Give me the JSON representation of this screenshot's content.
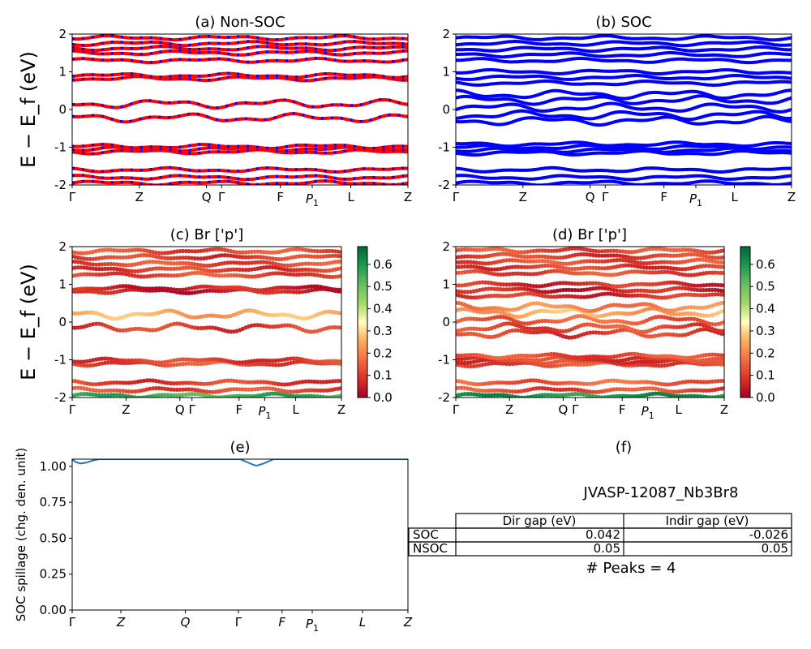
{
  "chart_data": [
    {
      "id": "a",
      "type": "line",
      "title": "(a) Non-SOC",
      "ylabel": "E − E_f (eV)",
      "ylim": [
        -2,
        2
      ],
      "yticks": [
        -2,
        -1,
        0,
        1,
        2
      ],
      "xticks": [
        {
          "label": "Γ",
          "pos": 0.0
        },
        {
          "label": "Z",
          "pos": 0.2
        },
        {
          "label": "Q",
          "pos": 0.4
        },
        {
          "label": "Γ",
          "pos": 0.445
        },
        {
          "label": "F",
          "pos": 0.62
        },
        {
          "label": "P1",
          "pos": 0.715
        },
        {
          "label": "L",
          "pos": 0.83
        },
        {
          "label": "Z",
          "pos": 1.0
        }
      ],
      "series": [
        {
          "color": "#ff0000",
          "bands": "non-soc"
        },
        {
          "color": "#0000ff",
          "bands": "non-soc"
        }
      ],
      "band_levels_eV": [
        -1.95,
        -1.8,
        -1.6,
        -1.12,
        -1.05,
        -0.98,
        -0.22,
        0.15,
        0.82,
        0.9,
        1.3,
        1.5,
        1.62,
        1.75,
        1.9
      ]
    },
    {
      "id": "b",
      "type": "line",
      "title": "(b) SOC",
      "ylim": [
        -2,
        2
      ],
      "yticks": [
        -2,
        -1,
        0,
        1,
        2
      ],
      "xticks": [
        {
          "label": "Γ",
          "pos": 0.0
        },
        {
          "label": "Z",
          "pos": 0.2
        },
        {
          "label": "Q",
          "pos": 0.4
        },
        {
          "label": "Γ",
          "pos": 0.445
        },
        {
          "label": "F",
          "pos": 0.62
        },
        {
          "label": "P1",
          "pos": 0.715
        },
        {
          "label": "L",
          "pos": 0.83
        },
        {
          "label": "Z",
          "pos": 1.0
        }
      ],
      "series": [
        {
          "color": "#0000ff",
          "bands": "soc"
        }
      ],
      "band_levels_eV": [
        -1.95,
        -1.8,
        -1.6,
        -1.15,
        -1.08,
        -1.0,
        -0.92,
        -0.3,
        -0.15,
        0.05,
        0.25,
        0.4,
        0.7,
        0.85,
        1.0,
        1.3,
        1.45,
        1.6,
        1.75,
        1.9
      ]
    },
    {
      "id": "c",
      "type": "scatter",
      "title": "(c)  Br ['p']",
      "ylabel": "E − E_f (eV)",
      "ylim": [
        -2,
        2
      ],
      "yticks": [
        -2,
        -1,
        0,
        1,
        2
      ],
      "xticks": [
        {
          "label": "Γ",
          "pos": 0.0
        },
        {
          "label": "Z",
          "pos": 0.2
        },
        {
          "label": "Q",
          "pos": 0.4
        },
        {
          "label": "Γ",
          "pos": 0.445
        },
        {
          "label": "F",
          "pos": 0.62
        },
        {
          "label": "P1",
          "pos": 0.715
        },
        {
          "label": "L",
          "pos": 0.83
        },
        {
          "label": "Z",
          "pos": 1.0
        }
      ],
      "colorbar": {
        "cmap": "RdYlGn",
        "range": [
          0,
          0.68
        ],
        "ticks": [
          "0.0",
          "0.1",
          "0.2",
          "0.3",
          "0.4",
          "0.5",
          "0.6"
        ]
      },
      "band_levels_eV": [
        -1.95,
        -1.8,
        -1.6,
        -1.1,
        -1.02,
        -0.15,
        0.2,
        0.82,
        0.9,
        1.25,
        1.4,
        1.55,
        1.72,
        1.88
      ],
      "band_weights": [
        0.55,
        0.12,
        0.1,
        0.12,
        0.1,
        0.1,
        0.25,
        0.05,
        0.06,
        0.12,
        0.1,
        0.12,
        0.1,
        0.12
      ]
    },
    {
      "id": "d",
      "type": "scatter",
      "title": "(d) Br ['p']",
      "ylim": [
        -2,
        2
      ],
      "yticks": [
        -2,
        -1,
        0,
        1,
        2
      ],
      "xticks": [
        {
          "label": "Γ",
          "pos": 0.0
        },
        {
          "label": "Z",
          "pos": 0.2
        },
        {
          "label": "Q",
          "pos": 0.4
        },
        {
          "label": "Γ",
          "pos": 0.445
        },
        {
          "label": "F",
          "pos": 0.62
        },
        {
          "label": "P1",
          "pos": 0.715
        },
        {
          "label": "L",
          "pos": 0.83
        },
        {
          "label": "Z",
          "pos": 1.0
        }
      ],
      "colorbar": {
        "cmap": "RdYlGn",
        "range": [
          0,
          0.68
        ],
        "ticks": [
          "0.0",
          "0.1",
          "0.2",
          "0.3",
          "0.4",
          "0.5",
          "0.6"
        ]
      },
      "band_levels_eV": [
        -1.95,
        -1.8,
        -1.6,
        -1.12,
        -1.05,
        -0.98,
        -0.9,
        -0.3,
        -0.15,
        0.05,
        0.25,
        0.4,
        0.7,
        0.85,
        1.0,
        1.3,
        1.45,
        1.6,
        1.75,
        1.9
      ],
      "band_weights": [
        0.6,
        0.12,
        0.15,
        0.12,
        0.1,
        0.1,
        0.12,
        0.1,
        0.12,
        0.15,
        0.25,
        0.2,
        0.08,
        0.06,
        0.08,
        0.12,
        0.1,
        0.12,
        0.1,
        0.12
      ]
    },
    {
      "id": "e",
      "type": "line",
      "title": "(e)",
      "ylabel": "SOC spillage (chg. den. unit)",
      "ylim": [
        0,
        1.05
      ],
      "yticks": [
        "0.00",
        "0.25",
        "0.50",
        "0.75",
        "1.00"
      ],
      "xticks": [
        {
          "label": "Γ",
          "pos": 0.0
        },
        {
          "label": "Z",
          "pos": 0.145
        },
        {
          "label": "Q",
          "pos": 0.337
        },
        {
          "label": "Γ",
          "pos": 0.495
        },
        {
          "label": "F",
          "pos": 0.625
        },
        {
          "label": "P1",
          "pos": 0.715
        },
        {
          "label": "L",
          "pos": 0.865
        },
        {
          "label": "Z",
          "pos": 1.0
        }
      ],
      "series": [
        {
          "color": "#1f77b4",
          "x": [
            0,
            0.01,
            0.025,
            0.04,
            0.06,
            0.08,
            0.1,
            0.2,
            0.3,
            0.4,
            0.5,
            0.52,
            0.54,
            0.55,
            0.57,
            0.6,
            0.7,
            0.8,
            0.9,
            1.0
          ],
          "y": [
            1.05,
            1.03,
            1.02,
            1.025,
            1.04,
            1.05,
            1.05,
            1.05,
            1.05,
            1.05,
            1.05,
            1.03,
            1.01,
            1.005,
            1.02,
            1.05,
            1.05,
            1.05,
            1.05,
            1.05
          ]
        }
      ]
    }
  ],
  "panel_f": {
    "title": "(f)",
    "material": "JVASP-12087_Nb3Br8",
    "table": {
      "columns": [
        "Dir gap (eV)",
        "Indir gap (eV)"
      ],
      "rows": [
        {
          "label": "SOC",
          "dir": "0.042",
          "indir": "-0.026"
        },
        {
          "label": "NSOC",
          "dir": "0.05",
          "indir": "0.05"
        }
      ]
    },
    "peaks_text": "# Peaks = 4"
  }
}
